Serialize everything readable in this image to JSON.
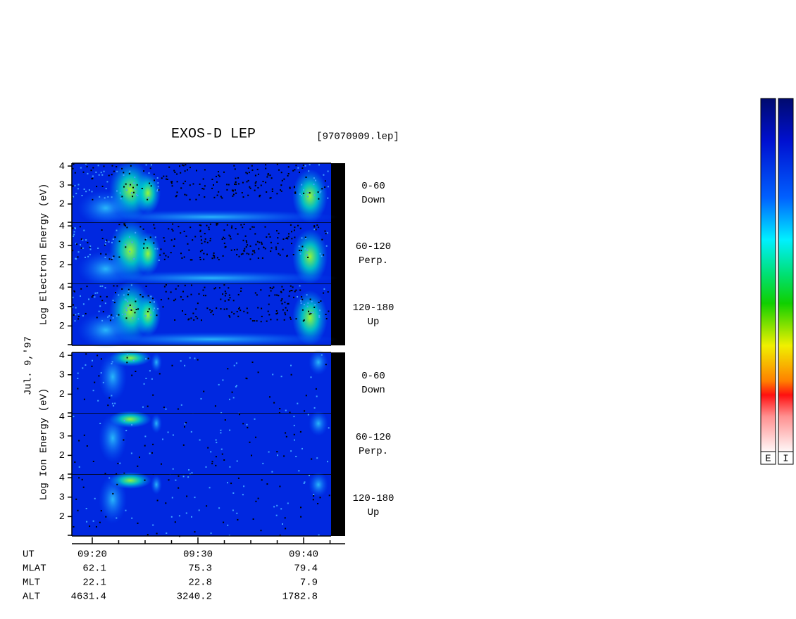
{
  "title": "EXOS-D LEP",
  "file": "[97070909.lep]",
  "date": "Jul. 9,'97",
  "groups": [
    {
      "label": "Log Electron Energy (eV)",
      "panels": [
        {
          "range": "0-60",
          "direction": "Down"
        },
        {
          "range": "60-120",
          "direction": "Perp."
        },
        {
          "range": "120-180",
          "direction": "Up"
        }
      ]
    },
    {
      "label": "Log Ion Energy (eV)",
      "panels": [
        {
          "range": "0-60",
          "direction": "Down"
        },
        {
          "range": "60-120",
          "direction": "Perp."
        },
        {
          "range": "120-180",
          "direction": "Up"
        }
      ]
    }
  ],
  "energy_axis": {
    "ylim": [
      1,
      4.15
    ],
    "yticks": [
      2,
      3,
      4
    ]
  },
  "time_axis": {
    "xlim": [
      558.07,
      583.93
    ],
    "xticks": [
      {
        "value": 560,
        "label": "09:20"
      },
      {
        "value": 570,
        "label": "09:30"
      },
      {
        "value": 580,
        "label": "09:40"
      }
    ],
    "minor_xticks": [
      562.5,
      565,
      567.5,
      572.5,
      575,
      577.5,
      582.5
    ]
  },
  "ephemeris": {
    "row_labels": [
      "UT",
      "MLAT",
      "MLT",
      "ALT"
    ],
    "rows": [
      [
        62.1,
        75.3,
        79.4
      ],
      [
        22.1,
        22.8,
        7.9
      ],
      [
        4631.4,
        3240.2,
        1782.8
      ]
    ]
  },
  "colorbars": [
    "E",
    "I"
  ]
}
